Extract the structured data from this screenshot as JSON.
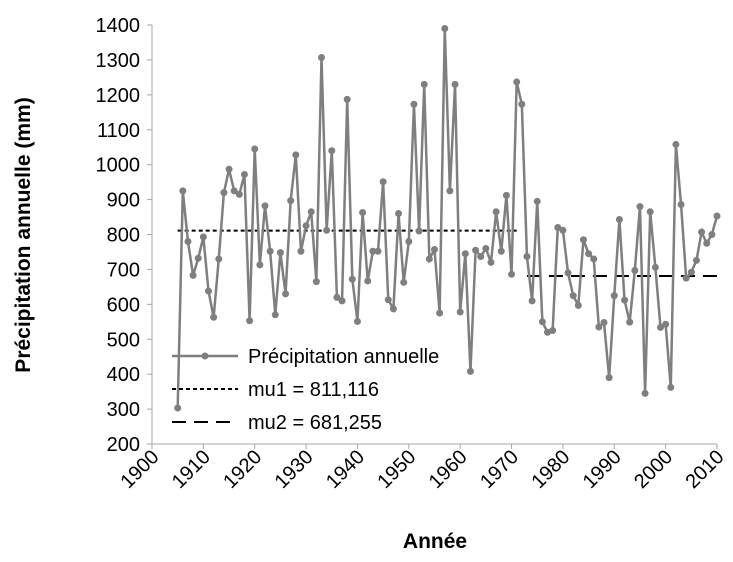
{
  "chart_data": {
    "type": "line",
    "x_label": "Année",
    "y_label": "Précipitation annuelle (mm)",
    "x": [
      1905,
      1906,
      1907,
      1908,
      1909,
      1910,
      1911,
      1912,
      1913,
      1914,
      1915,
      1916,
      1917,
      1918,
      1919,
      1920,
      1921,
      1922,
      1923,
      1924,
      1925,
      1926,
      1927,
      1928,
      1929,
      1930,
      1931,
      1932,
      1933,
      1934,
      1935,
      1936,
      1937,
      1938,
      1939,
      1940,
      1941,
      1942,
      1943,
      1944,
      1945,
      1946,
      1947,
      1948,
      1949,
      1950,
      1951,
      1952,
      1953,
      1954,
      1955,
      1956,
      1957,
      1958,
      1959,
      1960,
      1961,
      1962,
      1963,
      1964,
      1965,
      1966,
      1967,
      1968,
      1969,
      1970,
      1971,
      1972,
      1973,
      1974,
      1975,
      1976,
      1977,
      1978,
      1979,
      1980,
      1981,
      1982,
      1983,
      1984,
      1985,
      1986,
      1987,
      1988,
      1989,
      1990,
      1991,
      1992,
      1993,
      1994,
      1995,
      1996,
      1997,
      1998,
      1999,
      2000,
      2001,
      2002,
      2003,
      2004,
      2005,
      2006,
      2007,
      2008,
      2009,
      2010
    ],
    "series": [
      {
        "name": "Précipitation annuelle",
        "color": "#7f7f7f",
        "values": [
          303,
          925,
          780,
          683,
          732,
          793,
          638,
          563,
          730,
          920,
          987,
          925,
          915,
          972,
          553,
          1045,
          713,
          882,
          752,
          570,
          748,
          630,
          897,
          1028,
          752,
          825,
          865,
          665,
          1307,
          812,
          1040,
          620,
          610,
          1187,
          672,
          551,
          863,
          667,
          752,
          752,
          951,
          613,
          587,
          860,
          663,
          780,
          1173,
          810,
          1230,
          730,
          757,
          575,
          1390,
          925,
          1230,
          578,
          745,
          408,
          755,
          737,
          760,
          720,
          865,
          752,
          912,
          686,
          1237,
          1173,
          737,
          610,
          895,
          550,
          520,
          525,
          820,
          812,
          690,
          625,
          597,
          785,
          745,
          730,
          535,
          548,
          390,
          625,
          843,
          612,
          549,
          697,
          880,
          345,
          865,
          706,
          534,
          543,
          362,
          1058,
          886,
          675,
          692,
          726,
          807,
          775,
          800,
          853
        ]
      }
    ],
    "reference_lines": [
      {
        "name": "mu1 = 811,116",
        "value": 811.116,
        "x": [
          1905,
          1971
        ],
        "color": "#000000",
        "dash": "short"
      },
      {
        "name": "mu2 = 681,255",
        "value": 681.255,
        "x": [
          1973,
          2010
        ],
        "color": "#000000",
        "dash": "long"
      }
    ],
    "xlim": [
      1900,
      2010
    ],
    "xticks": [
      1900,
      1910,
      1920,
      1930,
      1940,
      1950,
      1960,
      1970,
      1980,
      1990,
      2000,
      2010
    ],
    "ylim": [
      200,
      1400
    ],
    "yticks": [
      200,
      300,
      400,
      500,
      600,
      700,
      800,
      900,
      1000,
      1100,
      1200,
      1300,
      1400
    ],
    "grid": false,
    "legend": "lower-left"
  }
}
